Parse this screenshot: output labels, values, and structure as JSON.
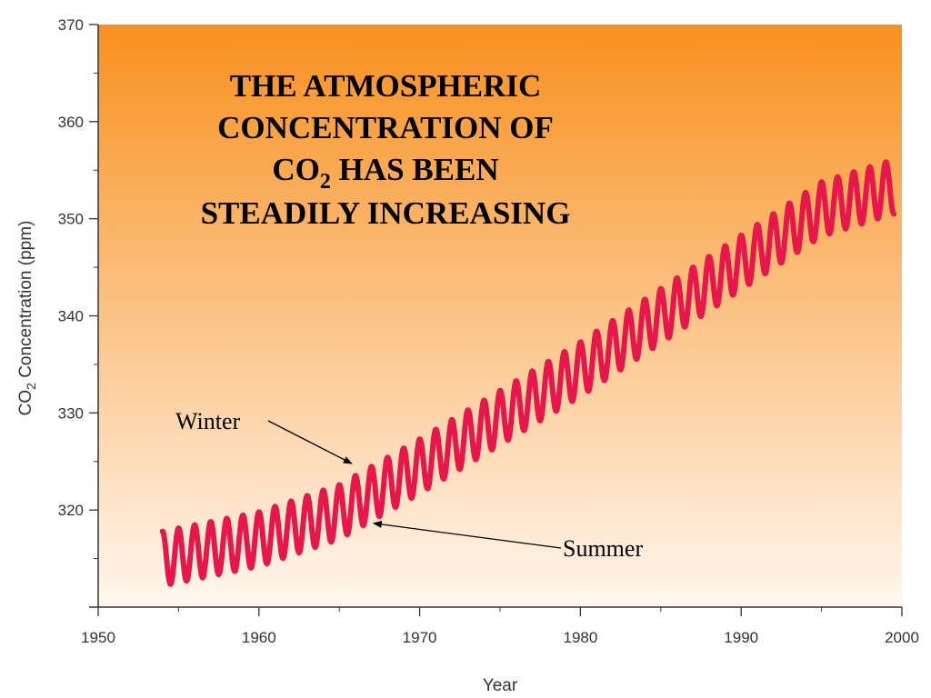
{
  "chart_data": {
    "type": "line",
    "title_lines": [
      "THE ATMOSPHERIC",
      "CONCENTRATION OF",
      "CO",
      "2",
      " HAS BEEN",
      "STEADILY INCREASING"
    ],
    "xlabel": "Year",
    "ylabel_parts": [
      "CO",
      "2",
      " Concentration (ppm)"
    ],
    "xlim": [
      1950,
      2000
    ],
    "ylim": [
      310,
      370
    ],
    "x_ticks": [
      1950,
      1960,
      1970,
      1980,
      1990,
      2000
    ],
    "y_ticks": [
      320,
      330,
      340,
      350,
      360,
      370
    ],
    "series": [
      {
        "x_start": 1954.0,
        "x_end": 1999.5,
        "trend_points": [
          [
            1954.0,
            315.0
          ],
          [
            1960.0,
            317.0
          ],
          [
            1965.0,
            319.8
          ],
          [
            1970.0,
            324.5
          ],
          [
            1975.0,
            329.5
          ],
          [
            1980.0,
            334.5
          ],
          [
            1985.0,
            340.0
          ],
          [
            1990.0,
            345.5
          ],
          [
            1995.0,
            351.0
          ],
          [
            1999.5,
            353.3
          ]
        ],
        "seasonal_amplitude": 2.8,
        "cycle_years": 1.0,
        "color": "#e8174b"
      }
    ],
    "annotations": [
      {
        "text": "Winter",
        "point_x": 1966.0,
        "point_y": 324.6
      },
      {
        "text": "Summer",
        "point_x": 1966.9,
        "point_y": 319.1
      }
    ],
    "background_gradient": [
      "#f7901e",
      "#fff7ee"
    ],
    "grid": false
  }
}
